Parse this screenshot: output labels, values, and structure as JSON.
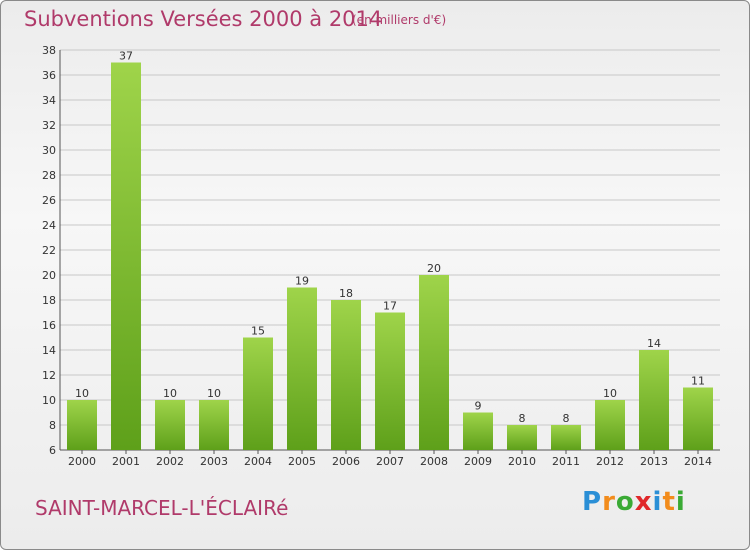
{
  "header": {
    "title": "Subventions Versées 2000 à 2014",
    "unit": "(en milliers d'€)"
  },
  "footer": {
    "commune": "SAINT-MARCEL-L'ÉCLAIRé",
    "logo_letters": [
      "P",
      "r",
      "o",
      "x",
      "i",
      "t",
      "i"
    ],
    "logo_colors": [
      "#2a8fd6",
      "#f28c1c",
      "#3aaa35",
      "#e0282a",
      "#2a8fd6",
      "#f28c1c",
      "#3aaa35"
    ]
  },
  "colors": {
    "bar_top": "#9fd44a",
    "bar_bottom": "#5ea01a",
    "grid": "#c8c8c8",
    "title": "#b03a6a"
  },
  "chart_data": {
    "type": "bar",
    "categories": [
      "2000",
      "2001",
      "2002",
      "2003",
      "2004",
      "2005",
      "2006",
      "2007",
      "2008",
      "2009",
      "2010",
      "2011",
      "2012",
      "2013",
      "2014"
    ],
    "values": [
      10,
      37,
      10,
      10,
      15,
      19,
      18,
      17,
      20,
      9,
      8,
      8,
      10,
      14,
      11
    ],
    "title": "Subventions Versées 2000 à 2014",
    "ylim": [
      6,
      38
    ],
    "yticks": [
      6,
      8,
      10,
      12,
      14,
      16,
      18,
      20,
      22,
      24,
      26,
      28,
      30,
      32,
      34,
      36,
      38
    ],
    "grid": true,
    "legend": "none"
  }
}
